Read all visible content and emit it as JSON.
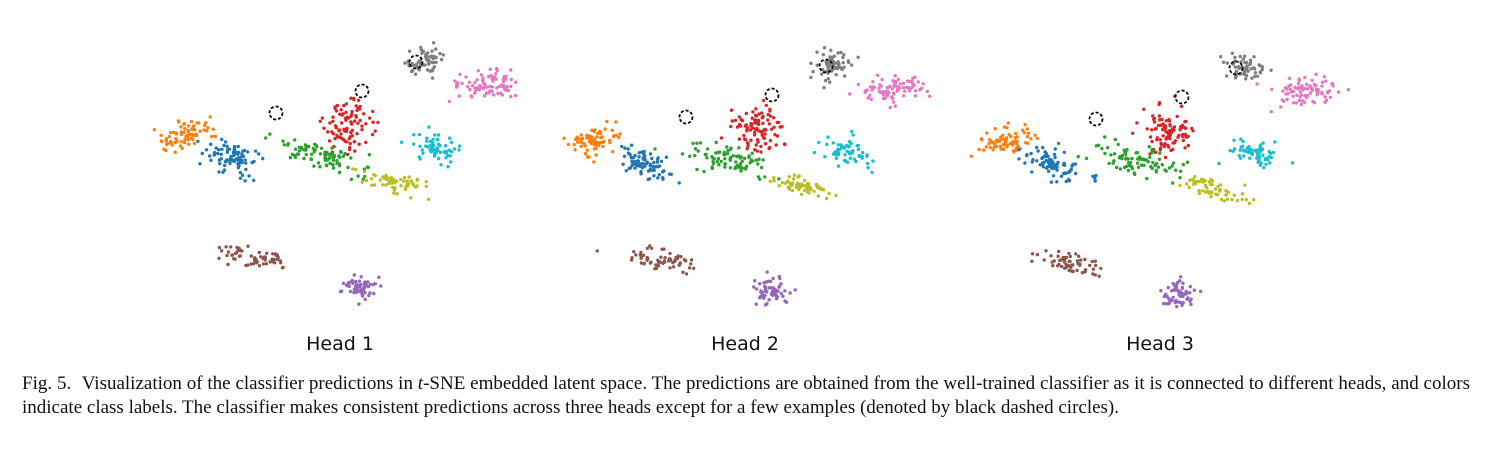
{
  "figure": {
    "panels": [
      {
        "label": "Head 1"
      },
      {
        "label": "Head 2"
      },
      {
        "label": "Head 3"
      }
    ],
    "caption": {
      "fig_label": "Fig. 5.",
      "text_part1": "Visualization of the classifier predictions in ",
      "t_symbol": "t",
      "text_part2": "-SNE embedded latent space. The predictions are obtained from the well-trained classifier as it is connected to different heads, and colors indicate class labels. The classifier makes consistent predictions across three heads except for a few examples (denoted by black dashed circles)."
    }
  },
  "chart_data": {
    "type": "scatter",
    "xlabel": "",
    "ylabel": "",
    "grid": false,
    "axes_visible": false,
    "class_colors": [
      "#1f77b4",
      "#ff7f0e",
      "#2ca02c",
      "#d62728",
      "#9467bd",
      "#8c564b",
      "#e377c2",
      "#7f7f7f",
      "#bcbd22",
      "#17becf"
    ],
    "highlight_marker": "black-dashed-circle",
    "panels": [
      "Head 1",
      "Head 2",
      "Head 3"
    ]
  }
}
